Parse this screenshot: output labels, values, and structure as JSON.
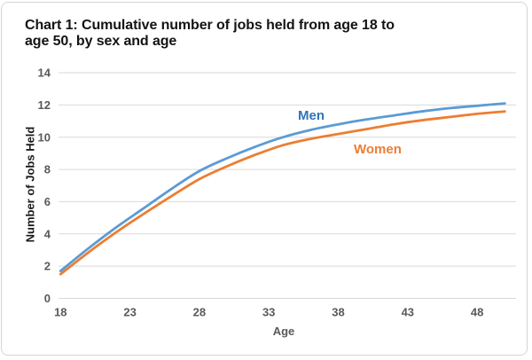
{
  "title": {
    "line1": "Chart 1: Cumulative number of jobs held from age 18 to",
    "line2": "age 50, by sex and age",
    "full": "Chart 1: Cumulative number of jobs held from age 18 to age 50, by sex and age"
  },
  "colors": {
    "men_line": "#5B9BD5",
    "men_label": "#2E75B6",
    "women_line": "#ED7D31",
    "women_label": "#ED7D31",
    "grid": "#D9D9D9",
    "tick_text": "#595959",
    "title_text": "#141414",
    "frame_border": "#D5D5D5",
    "background": "#FFFFFF"
  },
  "chart_data": {
    "type": "line",
    "title": "Chart 1: Cumulative number of jobs held from age 18 to age 50, by sex and age",
    "xlabel": "Age",
    "ylabel": "Number of Jobs Held",
    "x": [
      18,
      20,
      22,
      24,
      26,
      28,
      30,
      32,
      34,
      36,
      38,
      40,
      42,
      44,
      46,
      48,
      50
    ],
    "series": [
      {
        "name": "Men",
        "color": "#5B9BD5",
        "label_color": "#2E75B6",
        "values": [
          1.7,
          3.1,
          4.4,
          5.6,
          6.8,
          7.9,
          8.7,
          9.4,
          10.0,
          10.45,
          10.8,
          11.1,
          11.35,
          11.6,
          11.8,
          11.95,
          12.1
        ]
      },
      {
        "name": "Women",
        "color": "#ED7D31",
        "label_color": "#ED7D31",
        "values": [
          1.5,
          2.85,
          4.1,
          5.25,
          6.35,
          7.4,
          8.2,
          8.9,
          9.5,
          9.9,
          10.2,
          10.5,
          10.8,
          11.05,
          11.25,
          11.45,
          11.6
        ]
      }
    ],
    "xticks": [
      18,
      23,
      28,
      33,
      38,
      43,
      48
    ],
    "yticks": [
      0,
      2,
      4,
      6,
      8,
      10,
      12,
      14
    ],
    "xlim": [
      18,
      50.8
    ],
    "ylim": [
      0,
      14
    ],
    "grid": "horizontal",
    "legend": "inline-series-labels"
  }
}
